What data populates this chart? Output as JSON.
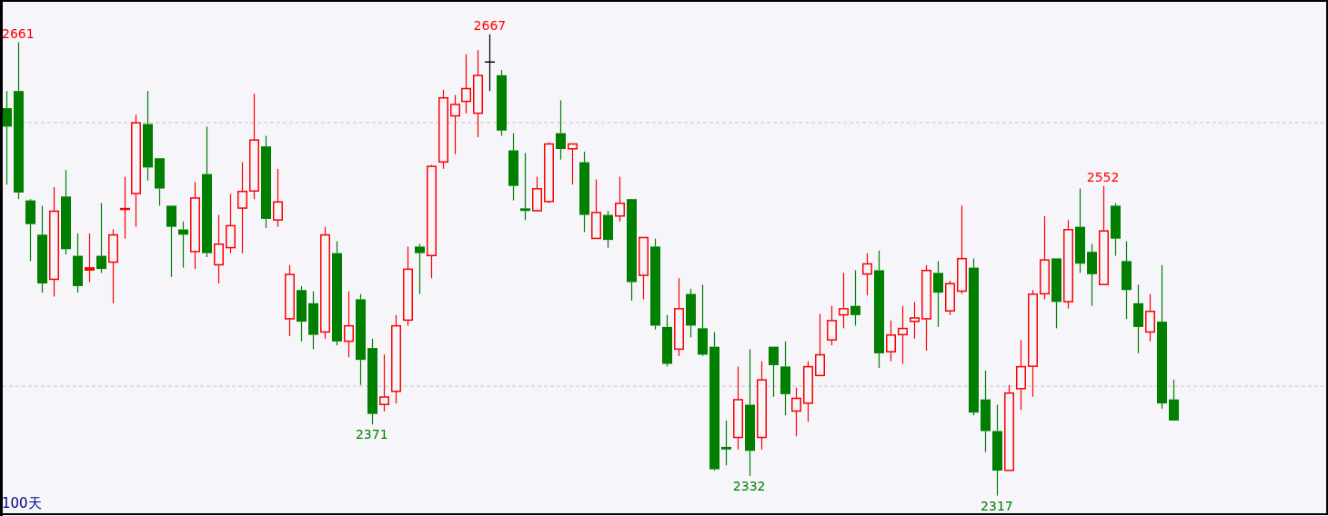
{
  "chart_data": {
    "type": "candlestick",
    "categories": [
      null,
      null,
      null,
      null,
      null,
      null,
      null,
      null,
      null,
      null,
      null,
      null,
      null,
      null,
      null,
      null,
      null,
      null,
      null,
      null,
      null,
      null,
      null,
      null,
      null,
      null,
      null,
      null,
      null,
      null,
      null,
      null,
      null,
      null,
      null,
      null,
      null,
      null,
      null,
      null,
      null,
      null,
      null,
      null,
      null,
      null,
      null,
      null,
      null,
      null,
      null,
      null,
      null,
      null,
      null,
      null,
      null,
      null,
      null,
      null,
      null,
      null,
      null,
      null,
      null,
      null,
      null,
      null,
      null,
      null,
      null,
      null,
      null,
      null,
      null,
      null,
      null,
      null,
      null,
      null,
      null,
      null,
      null,
      null,
      null,
      null,
      null,
      null,
      null,
      null,
      null,
      null,
      null,
      null,
      null,
      null,
      null,
      null,
      null,
      null
    ],
    "ohlc": [
      [
        2611,
        2624,
        2553,
        2597
      ],
      [
        2624,
        2661,
        2542,
        2547
      ],
      [
        2541,
        2542,
        2495,
        2523
      ],
      [
        2515,
        2537,
        2471,
        2478
      ],
      [
        2481,
        2551,
        2468,
        2533
      ],
      [
        2544,
        2564,
        2500,
        2504
      ],
      [
        2499,
        2516,
        2471,
        2476
      ],
      [
        2488,
        2516,
        2479,
        2490
      ],
      [
        2499,
        2539,
        2486,
        2489
      ],
      [
        2494,
        2519,
        2463,
        2515
      ],
      [
        2534,
        2559,
        2512,
        2535
      ],
      [
        2546,
        2606,
        2521,
        2600
      ],
      [
        2599,
        2624,
        2556,
        2566
      ],
      [
        2573,
        2573,
        2537,
        2550
      ],
      [
        2537,
        2537,
        2483,
        2521
      ],
      [
        2519,
        2525,
        2490,
        2515
      ],
      [
        2502,
        2555,
        2489,
        2543
      ],
      [
        2561,
        2597,
        2498,
        2501
      ],
      [
        2492,
        2530,
        2478,
        2508
      ],
      [
        2505,
        2546,
        2501,
        2522
      ],
      [
        2535,
        2570,
        2501,
        2548
      ],
      [
        2548,
        2622,
        2542,
        2587
      ],
      [
        2582,
        2590,
        2520,
        2527
      ],
      [
        2526,
        2565,
        2521,
        2540
      ],
      [
        2451,
        2492,
        2438,
        2485
      ],
      [
        2473,
        2476,
        2434,
        2449
      ],
      [
        2463,
        2472,
        2428,
        2439
      ],
      [
        2441,
        2521,
        2436,
        2515
      ],
      [
        2501,
        2510,
        2431,
        2434
      ],
      [
        2434,
        2472,
        2422,
        2446
      ],
      [
        2466,
        2470,
        2401,
        2420
      ],
      [
        2429,
        2436,
        2371,
        2379
      ],
      [
        2386,
        2424,
        2381,
        2392
      ],
      [
        2396,
        2454,
        2387,
        2446
      ],
      [
        2450,
        2506,
        2446,
        2489
      ],
      [
        2506,
        2508,
        2470,
        2501
      ],
      [
        2499,
        2568,
        2482,
        2567
      ],
      [
        2570,
        2625,
        2565,
        2619
      ],
      [
        2605,
        2621,
        2576,
        2614
      ],
      [
        2616,
        2652,
        2607,
        2626
      ],
      [
        2607,
        2655,
        2589,
        2636
      ],
      [
        2646,
        2667,
        2624,
        2646
      ],
      [
        2636,
        2640,
        2590,
        2594
      ],
      [
        2579,
        2592,
        2541,
        2552
      ],
      [
        2535,
        2577,
        2526,
        2533
      ],
      [
        2533,
        2559,
        2533,
        2550
      ],
      [
        2540,
        2585,
        2539,
        2584
      ],
      [
        2592,
        2617,
        2572,
        2580
      ],
      [
        2580,
        2584,
        2553,
        2584
      ],
      [
        2570,
        2578,
        2517,
        2530
      ],
      [
        2512,
        2557,
        2512,
        2532
      ],
      [
        2530,
        2533,
        2505,
        2511
      ],
      [
        2529,
        2559,
        2525,
        2539
      ],
      [
        2542,
        2542,
        2465,
        2479
      ],
      [
        2484,
        2513,
        2466,
        2513
      ],
      [
        2506,
        2512,
        2443,
        2446
      ],
      [
        2445,
        2454,
        2415,
        2417
      ],
      [
        2428,
        2482,
        2423,
        2459
      ],
      [
        2470,
        2474,
        2437,
        2446
      ],
      [
        2444,
        2477,
        2423,
        2424
      ],
      [
        2430,
        2441,
        2336,
        2337
      ],
      [
        2354,
        2374,
        2340,
        2352
      ],
      [
        2361,
        2415,
        2352,
        2390
      ],
      [
        2386,
        2428,
        2332,
        2351
      ],
      [
        2361,
        2419,
        2352,
        2405
      ],
      [
        2430,
        2430,
        2392,
        2416
      ],
      [
        2415,
        2434,
        2378,
        2394
      ],
      [
        2381,
        2399,
        2362,
        2391
      ],
      [
        2387,
        2419,
        2373,
        2415
      ],
      [
        2408,
        2455,
        2408,
        2424
      ],
      [
        2435,
        2461,
        2431,
        2450
      ],
      [
        2454,
        2486,
        2444,
        2459
      ],
      [
        2461,
        2488,
        2446,
        2454
      ],
      [
        2485,
        2501,
        2469,
        2493
      ],
      [
        2488,
        2503,
        2414,
        2425
      ],
      [
        2426,
        2450,
        2419,
        2439
      ],
      [
        2439,
        2461,
        2417,
        2444
      ],
      [
        2449,
        2464,
        2436,
        2452
      ],
      [
        2451,
        2492,
        2427,
        2488
      ],
      [
        2486,
        2495,
        2445,
        2471
      ],
      [
        2457,
        2480,
        2454,
        2478
      ],
      [
        2472,
        2537,
        2470,
        2497
      ],
      [
        2490,
        2497,
        2378,
        2380
      ],
      [
        2390,
        2412,
        2350,
        2366
      ],
      [
        2366,
        2386,
        2317,
        2336
      ],
      [
        2336,
        2401,
        2336,
        2395
      ],
      [
        2398,
        2435,
        2382,
        2415
      ],
      [
        2415,
        2473,
        2392,
        2470
      ],
      [
        2470,
        2529,
        2466,
        2496
      ],
      [
        2497,
        2497,
        2444,
        2464
      ],
      [
        2464,
        2526,
        2459,
        2519
      ],
      [
        2521,
        2550,
        2486,
        2493
      ],
      [
        2502,
        2508,
        2461,
        2485
      ],
      [
        2477,
        2552,
        2477,
        2518
      ],
      [
        2537,
        2539,
        2499,
        2512
      ],
      [
        2495,
        2510,
        2451,
        2473
      ],
      [
        2463,
        2477,
        2425,
        2445
      ],
      [
        2441,
        2470,
        2434,
        2457
      ],
      [
        2449,
        2492,
        2383,
        2387
      ],
      [
        2390,
        2405,
        2374,
        2374
      ]
    ],
    "colors": [
      "#007f00",
      "#007f00",
      "#007f00",
      "#007f00",
      "#ff0000",
      "#007f00",
      "#007f00",
      "#ff0000",
      "#007f00",
      "#ff0000",
      "#ff0000",
      "#ff0000",
      "#007f00",
      "#007f00",
      "#007f00",
      "#007f00",
      "#ff0000",
      "#007f00",
      "#ff0000",
      "#ff0000",
      "#ff0000",
      "#ff0000",
      "#007f00",
      "#ff0000",
      "#ff0000",
      "#007f00",
      "#007f00",
      "#ff0000",
      "#007f00",
      "#ff0000",
      "#007f00",
      "#007f00",
      "#ff0000",
      "#ff0000",
      "#ff0000",
      "#007f00",
      "#ff0000",
      "#ff0000",
      "#ff0000",
      "#ff0000",
      "#ff0000",
      "#000000",
      "#007f00",
      "#007f00",
      "#007f00",
      "#ff0000",
      "#ff0000",
      "#007f00",
      "#ff0000",
      "#007f00",
      "#ff0000",
      "#007f00",
      "#ff0000",
      "#007f00",
      "#ff0000",
      "#007f00",
      "#007f00",
      "#ff0000",
      "#007f00",
      "#007f00",
      "#007f00",
      "#007f00",
      "#ff0000",
      "#007f00",
      "#ff0000",
      "#007f00",
      "#007f00",
      "#ff0000",
      "#ff0000",
      "#ff0000",
      "#ff0000",
      "#ff0000",
      "#007f00",
      "#ff0000",
      "#007f00",
      "#ff0000",
      "#ff0000",
      "#ff0000",
      "#ff0000",
      "#007f00",
      "#ff0000",
      "#ff0000",
      "#007f00",
      "#007f00",
      "#007f00",
      "#ff0000",
      "#ff0000",
      "#ff0000",
      "#ff0000",
      "#007f00",
      "#ff0000",
      "#007f00",
      "#007f00",
      "#ff0000",
      "#007f00",
      "#007f00",
      "#007f00",
      "#ff0000",
      "#007f00",
      "#007f00"
    ],
    "ylim": [
      2305,
      2691
    ],
    "yticks": [
      {
        "value": 2400,
        "label": null
      },
      {
        "value": 2600,
        "label": null
      }
    ],
    "grid": "y",
    "annotations": [
      {
        "text": "2661",
        "y": 2661
      },
      {
        "text": "2667",
        "y": 2667
      },
      {
        "text": "2552",
        "y": 2552
      },
      {
        "text": "2371",
        "y": 2371
      },
      {
        "text": "2332",
        "y": 2332
      },
      {
        "text": "2317",
        "y": 2317
      },
      "100天"
    ]
  }
}
